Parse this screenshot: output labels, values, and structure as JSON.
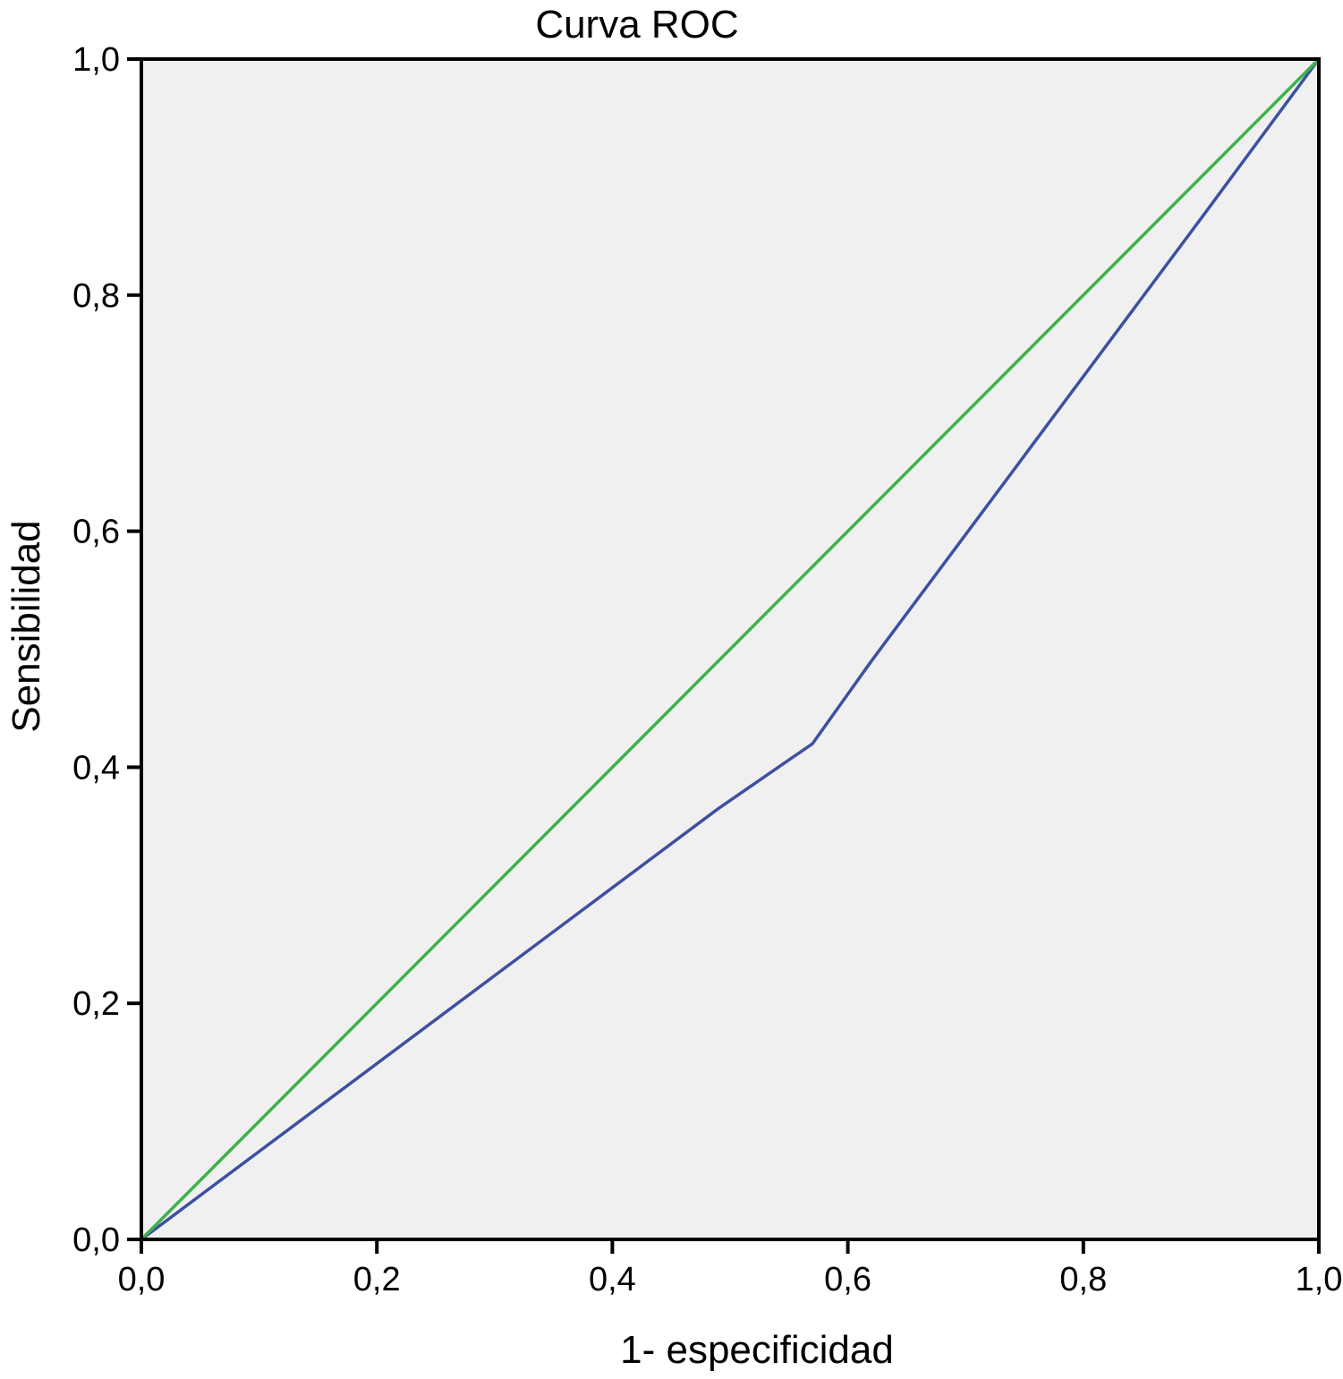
{
  "chart_data": {
    "type": "line",
    "title": "Curva ROC",
    "xlabel": "1- especificidad",
    "ylabel": "Sensibilidad",
    "xlim": [
      0,
      1
    ],
    "ylim": [
      0,
      1
    ],
    "grid": false,
    "legend": "none",
    "x_ticks": [
      0,
      0.2,
      0.4,
      0.6,
      0.8,
      1
    ],
    "y_ticks": [
      0,
      0.2,
      0.4,
      0.6,
      0.8,
      1
    ],
    "x_tick_labels": [
      "0,0",
      "0,2",
      "0,4",
      "0,6",
      "0,8",
      "1,0"
    ],
    "y_tick_labels": [
      "0,0",
      "0,2",
      "0,4",
      "0,6",
      "0,8",
      "1,0"
    ],
    "plot_background": "#f0f0f0",
    "series": [
      {
        "color": "#3d50a0",
        "points": [
          [
            0,
            0
          ],
          [
            0.49,
            0.365
          ],
          [
            0.57,
            0.42
          ],
          [
            0.62,
            0.49
          ],
          [
            0.9,
            0.865
          ],
          [
            1,
            1
          ]
        ]
      },
      {
        "color": "#3db24a",
        "points": [
          [
            0,
            0
          ],
          [
            1,
            1
          ]
        ]
      }
    ]
  }
}
